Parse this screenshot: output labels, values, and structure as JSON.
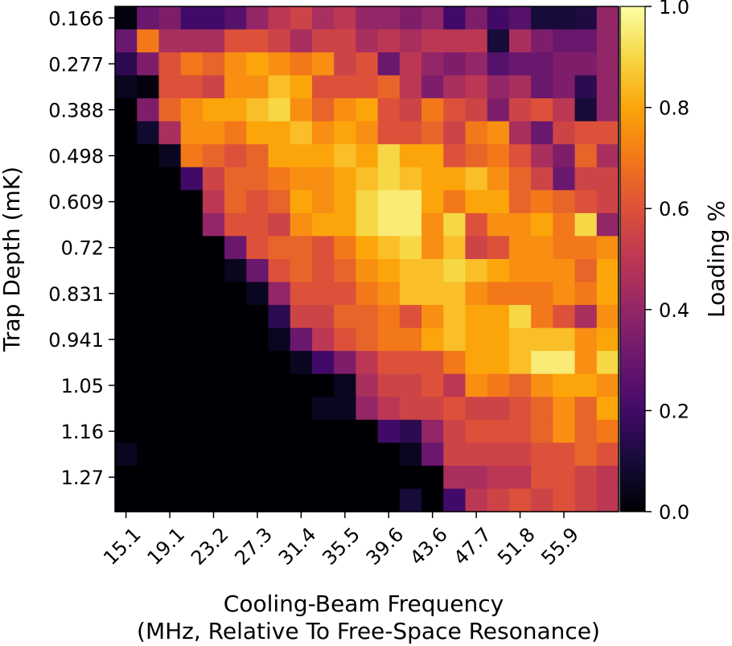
{
  "chart_data": {
    "type": "heatmap",
    "title": "",
    "xlabel_line1": "Cooling-Beam Frequency",
    "xlabel_line2": "(MHz, Relative To Free-Space Resonance)",
    "ylabel": "Trap Depth (mK)",
    "colorbar_label": "Loading %",
    "colormap": "inferno",
    "value_range": [
      0,
      1
    ],
    "x_tick_labels": [
      "15.1",
      "19.1",
      "23.2",
      "27.3",
      "31.4",
      "35.5",
      "39.6",
      "43.6",
      "47.7",
      "51.8",
      "55.9"
    ],
    "y_tick_labels": [
      "0.166",
      "0.277",
      "0.388",
      "0.498",
      "0.609",
      "0.72",
      "0.831",
      "0.941",
      "1.05",
      "1.16",
      "1.27"
    ],
    "colorbar_ticks": [
      "0.0",
      "0.2",
      "0.4",
      "0.6",
      "0.8",
      "1.0"
    ],
    "n_cols": 23,
    "n_rows": 22,
    "values": [
      [
        0.02,
        0.3,
        0.35,
        0.2,
        0.2,
        0.25,
        0.4,
        0.5,
        0.55,
        0.45,
        0.5,
        0.4,
        0.4,
        0.35,
        0.4,
        0.2,
        0.35,
        0.2,
        0.25,
        0.1,
        0.1,
        0.12,
        0.4
      ],
      [
        0.3,
        0.7,
        0.45,
        0.45,
        0.45,
        0.6,
        0.6,
        0.55,
        0.45,
        0.55,
        0.55,
        0.45,
        0.5,
        0.45,
        0.5,
        0.5,
        0.5,
        0.1,
        0.45,
        0.35,
        0.3,
        0.3,
        0.4
      ],
      [
        0.15,
        0.35,
        0.6,
        0.7,
        0.65,
        0.75,
        0.8,
        0.75,
        0.7,
        0.75,
        0.55,
        0.6,
        0.3,
        0.5,
        0.4,
        0.35,
        0.4,
        0.25,
        0.3,
        0.3,
        0.35,
        0.35,
        0.4
      ],
      [
        0.05,
        0.02,
        0.6,
        0.6,
        0.55,
        0.75,
        0.75,
        0.85,
        0.8,
        0.6,
        0.6,
        0.6,
        0.65,
        0.5,
        0.35,
        0.45,
        0.5,
        0.4,
        0.45,
        0.3,
        0.35,
        0.15,
        0.4
      ],
      [
        0.0,
        0.35,
        0.65,
        0.75,
        0.8,
        0.8,
        0.85,
        0.9,
        0.75,
        0.65,
        0.75,
        0.8,
        0.6,
        0.55,
        0.7,
        0.6,
        0.55,
        0.35,
        0.55,
        0.6,
        0.5,
        0.1,
        0.4
      ],
      [
        0.0,
        0.08,
        0.45,
        0.75,
        0.75,
        0.7,
        0.8,
        0.8,
        0.85,
        0.75,
        0.8,
        0.75,
        0.6,
        0.6,
        0.65,
        0.55,
        0.7,
        0.75,
        0.45,
        0.3,
        0.55,
        0.6,
        0.6
      ],
      [
        0.0,
        0.0,
        0.05,
        0.7,
        0.65,
        0.6,
        0.65,
        0.8,
        0.8,
        0.8,
        0.85,
        0.8,
        0.9,
        0.8,
        0.8,
        0.6,
        0.65,
        0.7,
        0.6,
        0.45,
        0.35,
        0.65,
        0.45
      ],
      [
        0.0,
        0.0,
        0.0,
        0.2,
        0.55,
        0.65,
        0.65,
        0.7,
        0.75,
        0.75,
        0.8,
        0.85,
        0.9,
        0.85,
        0.8,
        0.8,
        0.85,
        0.75,
        0.65,
        0.55,
        0.3,
        0.55,
        0.55
      ],
      [
        0.0,
        0.0,
        0.0,
        0.0,
        0.5,
        0.65,
        0.6,
        0.65,
        0.8,
        0.75,
        0.8,
        0.9,
        0.95,
        0.95,
        0.8,
        0.7,
        0.8,
        0.8,
        0.65,
        0.7,
        0.65,
        0.6,
        0.55
      ],
      [
        0.0,
        0.0,
        0.0,
        0.0,
        0.4,
        0.6,
        0.6,
        0.55,
        0.75,
        0.8,
        0.8,
        0.9,
        0.95,
        0.95,
        0.75,
        0.9,
        0.6,
        0.75,
        0.75,
        0.8,
        0.7,
        0.9,
        0.4
      ],
      [
        0.0,
        0.0,
        0.0,
        0.0,
        0.0,
        0.3,
        0.6,
        0.65,
        0.65,
        0.6,
        0.7,
        0.8,
        0.85,
        0.9,
        0.75,
        0.85,
        0.55,
        0.6,
        0.75,
        0.75,
        0.7,
        0.7,
        0.75
      ],
      [
        0.0,
        0.0,
        0.0,
        0.0,
        0.0,
        0.05,
        0.3,
        0.6,
        0.65,
        0.6,
        0.65,
        0.75,
        0.8,
        0.85,
        0.85,
        0.9,
        0.85,
        0.8,
        0.75,
        0.75,
        0.75,
        0.65,
        0.8
      ],
      [
        0.0,
        0.0,
        0.0,
        0.0,
        0.0,
        0.0,
        0.05,
        0.4,
        0.6,
        0.6,
        0.6,
        0.7,
        0.75,
        0.85,
        0.85,
        0.85,
        0.75,
        0.7,
        0.7,
        0.7,
        0.75,
        0.7,
        0.8
      ],
      [
        0.0,
        0.0,
        0.0,
        0.0,
        0.0,
        0.0,
        0.0,
        0.15,
        0.55,
        0.55,
        0.65,
        0.65,
        0.7,
        0.6,
        0.75,
        0.85,
        0.8,
        0.8,
        0.9,
        0.7,
        0.6,
        0.45,
        0.75
      ],
      [
        0.0,
        0.0,
        0.0,
        0.0,
        0.0,
        0.0,
        0.0,
        0.05,
        0.3,
        0.5,
        0.6,
        0.65,
        0.7,
        0.7,
        0.8,
        0.85,
        0.8,
        0.8,
        0.85,
        0.85,
        0.85,
        0.75,
        0.8
      ],
      [
        0.0,
        0.0,
        0.0,
        0.0,
        0.0,
        0.0,
        0.0,
        0.0,
        0.05,
        0.2,
        0.35,
        0.5,
        0.6,
        0.6,
        0.6,
        0.7,
        0.8,
        0.8,
        0.85,
        0.95,
        0.95,
        0.75,
        0.9
      ],
      [
        0.0,
        0.0,
        0.0,
        0.0,
        0.0,
        0.0,
        0.0,
        0.0,
        0.0,
        0.0,
        0.05,
        0.45,
        0.55,
        0.55,
        0.6,
        0.5,
        0.75,
        0.7,
        0.65,
        0.75,
        0.8,
        0.8,
        0.75
      ],
      [
        0.0,
        0.0,
        0.0,
        0.0,
        0.0,
        0.0,
        0.0,
        0.0,
        0.0,
        0.05,
        0.05,
        0.4,
        0.5,
        0.55,
        0.55,
        0.6,
        0.55,
        0.55,
        0.6,
        0.65,
        0.75,
        0.65,
        0.8
      ],
      [
        0.0,
        0.0,
        0.0,
        0.0,
        0.0,
        0.0,
        0.0,
        0.0,
        0.0,
        0.0,
        0.0,
        0.0,
        0.2,
        0.15,
        0.4,
        0.55,
        0.6,
        0.6,
        0.6,
        0.65,
        0.75,
        0.65,
        0.7
      ],
      [
        0.05,
        0.0,
        0.0,
        0.0,
        0.0,
        0.0,
        0.0,
        0.0,
        0.0,
        0.0,
        0.0,
        0.0,
        0.0,
        0.05,
        0.3,
        0.55,
        0.55,
        0.55,
        0.55,
        0.6,
        0.6,
        0.65,
        0.6
      ],
      [
        0.0,
        0.0,
        0.0,
        0.0,
        0.0,
        0.0,
        0.0,
        0.0,
        0.0,
        0.0,
        0.0,
        0.0,
        0.0,
        0.0,
        0.0,
        0.45,
        0.45,
        0.5,
        0.5,
        0.6,
        0.6,
        0.55,
        0.5
      ],
      [
        0.0,
        0.0,
        0.0,
        0.0,
        0.0,
        0.0,
        0.0,
        0.0,
        0.0,
        0.0,
        0.0,
        0.0,
        0.0,
        0.1,
        0.0,
        0.2,
        0.5,
        0.55,
        0.6,
        0.55,
        0.6,
        0.55,
        0.5
      ]
    ]
  }
}
